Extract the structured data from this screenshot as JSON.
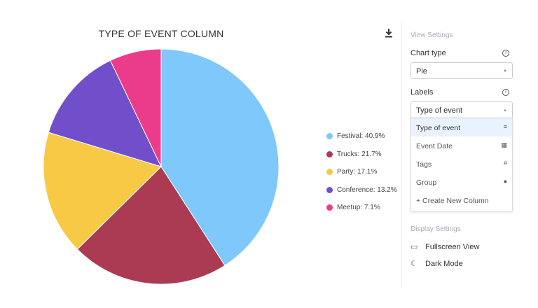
{
  "chart_data": {
    "type": "pie",
    "title": "TYPE OF EVENT COLUMN",
    "categories": [
      "Festival",
      "Trucks",
      "Party",
      "Conference",
      "Meetup"
    ],
    "values": [
      40.9,
      21.7,
      17.1,
      13.2,
      7.1
    ],
    "colors": [
      "#7ec8fb",
      "#ab3b52",
      "#f8c945",
      "#714fcb",
      "#ea3c8b"
    ],
    "legend_labels": [
      "Festival: 40.9%",
      "Trucks: 21.7%",
      "Party: 17.1%",
      "Conference: 13.2%",
      "Meetup: 7.1%"
    ],
    "legend_position": "right"
  },
  "panel": {
    "view_settings": "View Settings",
    "chart_type_label": "Chart type",
    "chart_type_value": "Pie",
    "labels_label": "Labels",
    "labels_value": "Type of event",
    "menu": [
      {
        "label": "Type of event",
        "icon": "≡"
      },
      {
        "label": "Event Date",
        "icon": "▦"
      },
      {
        "label": "Tags",
        "icon": "#"
      },
      {
        "label": "Group",
        "icon": "●"
      }
    ],
    "create": "+ Create New Column",
    "display_settings": "Display Settings",
    "fullscreen": "Fullscreen View",
    "dark_mode": "Dark Mode"
  }
}
